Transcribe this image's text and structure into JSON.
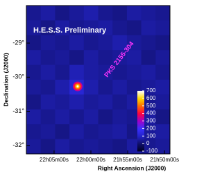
{
  "chart_data": {
    "type": "heatmap",
    "title": "H.E.S.S. Preliminary",
    "annotation": "PKS 2155-304",
    "x_label": "Right Ascension (J2000)",
    "y_label": "Declination (J2000)",
    "xlim": [
      22.146,
      21.821
    ],
    "ylim": [
      -32.25,
      -27.9
    ],
    "xticks": [
      {
        "value": 22.0833,
        "label": "22h05m00s"
      },
      {
        "value": 22.0,
        "label": "22h00m00s"
      },
      {
        "value": 21.9167,
        "label": "21h55m00s"
      },
      {
        "value": 21.8333,
        "label": "21h50m00s"
      }
    ],
    "yticks": [
      {
        "value": -29,
        "label": "-29°"
      },
      {
        "value": -30,
        "label": "-30°"
      },
      {
        "value": -31,
        "label": "-31°"
      },
      {
        "value": -32,
        "label": "-32°"
      }
    ],
    "z": [
      [
        40,
        60,
        30,
        50,
        70,
        40,
        30,
        60,
        50,
        40
      ],
      [
        50,
        30,
        60,
        40,
        50,
        60,
        40,
        30,
        60,
        50
      ],
      [
        30,
        50,
        40,
        60,
        40,
        50,
        70,
        50,
        40,
        30
      ],
      [
        60,
        40,
        50,
        30,
        60,
        40,
        50,
        60,
        30,
        50
      ],
      [
        40,
        60,
        40,
        80,
        60,
        50,
        40,
        50,
        60,
        40
      ],
      [
        50,
        40,
        70,
        120,
        70,
        40,
        60,
        40,
        50,
        60
      ],
      [
        30,
        60,
        50,
        70,
        50,
        60,
        40,
        60,
        40,
        50
      ],
      [
        60,
        40,
        60,
        40,
        60,
        30,
        50,
        40,
        60,
        30
      ],
      [
        40,
        50,
        30,
        60,
        40,
        50,
        60,
        30,
        50,
        60
      ],
      [
        50,
        30,
        60,
        40,
        50,
        40,
        30,
        60,
        40,
        50
      ]
    ],
    "source": {
      "ra": 22.03,
      "dec": -30.27,
      "peak": 700
    },
    "zlim": [
      -100,
      700
    ],
    "zticks": [
      -100,
      0,
      100,
      200,
      300,
      400,
      500,
      600,
      700
    ],
    "colors": [
      "#000022",
      "#10106a",
      "#2424c8",
      "#3a30ff",
      "#a000c8",
      "#ff0040",
      "#ff6a00",
      "#ffd800",
      "#ffffff"
    ],
    "title_color": "#ffffff",
    "annotation_color": "#ff33ff"
  }
}
